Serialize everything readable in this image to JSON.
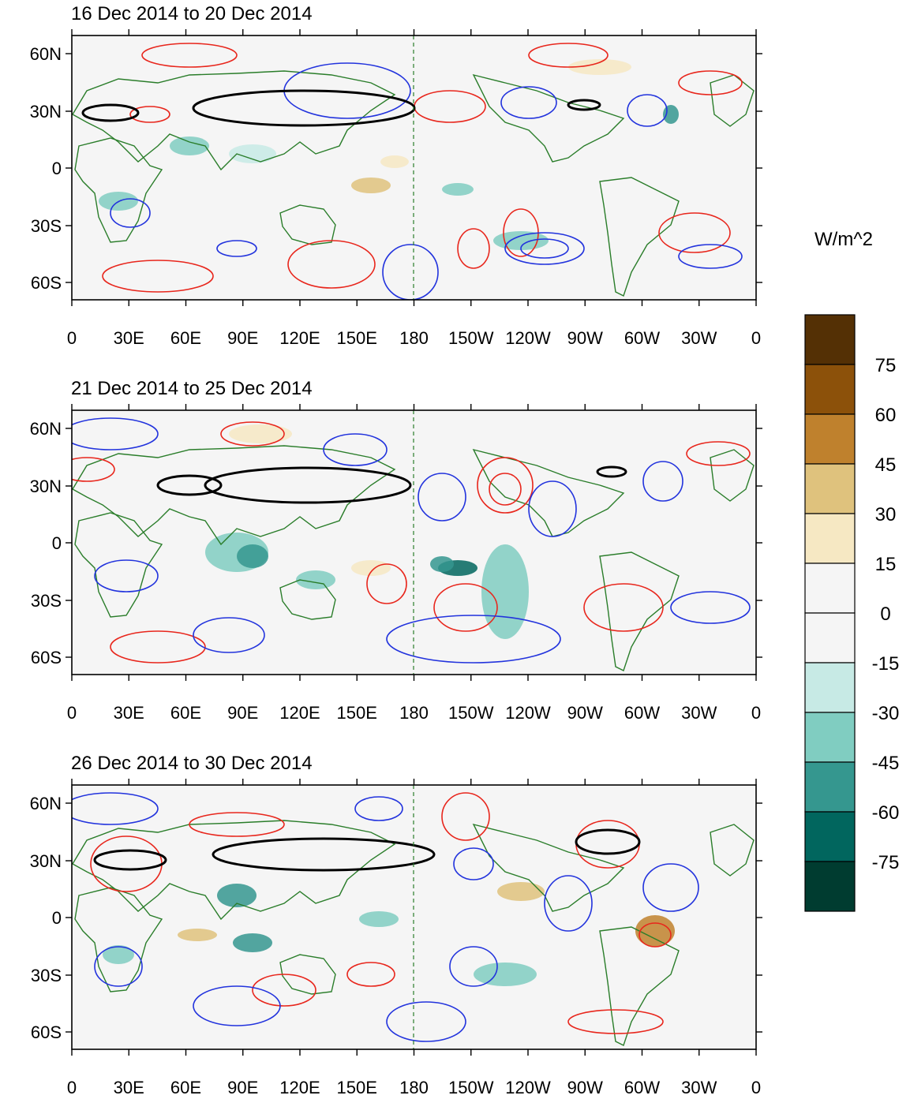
{
  "panels": [
    {
      "title": "16 Dec 2014 to 20 Dec 2014"
    },
    {
      "title": "21 Dec 2014 to 25 Dec 2014"
    },
    {
      "title": "26 Dec 2014 to 30 Dec 2014"
    }
  ],
  "lon_labels": [
    "0",
    "30E",
    "60E",
    "90E",
    "120E",
    "150E",
    "180",
    "150W",
    "120W",
    "90W",
    "60W",
    "30W",
    "0"
  ],
  "lat_labels": [
    "60N",
    "30N",
    "0",
    "30S",
    "60S"
  ],
  "colorbar": {
    "units": "W/m^2",
    "labels": [
      "75",
      "60",
      "45",
      "30",
      "15",
      "0",
      "-15",
      "-30",
      "-45",
      "-60",
      "-75"
    ],
    "colors": [
      "#543005",
      "#8c510a",
      "#bf812d",
      "#dfc27d",
      "#f6e8c3",
      "#f5f5f5",
      "#f5f5f5",
      "#c7eae5",
      "#80cdc1",
      "#35978f",
      "#01665e",
      "#003c30"
    ]
  },
  "colors": {
    "coast": "#2a7d2a",
    "positive_contour": "#e8261c",
    "negative_contour": "#2233dd",
    "thick_contour": "#000000",
    "background": "#f5f5f5"
  }
}
